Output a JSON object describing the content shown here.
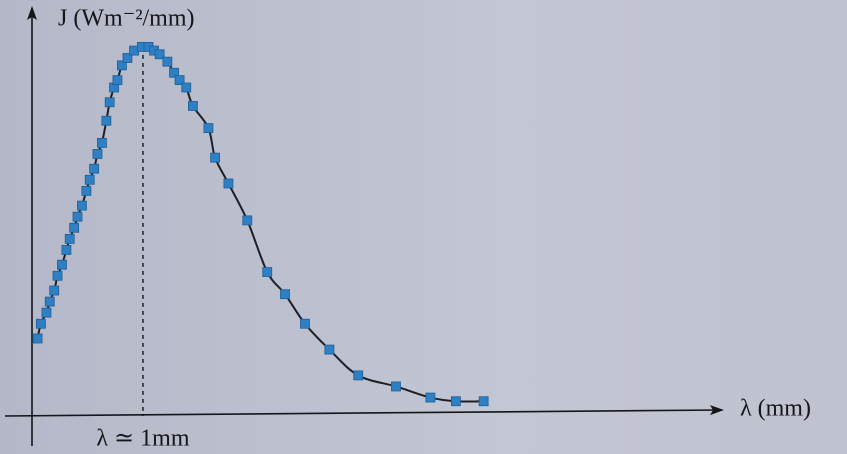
{
  "chart_data": {
    "type": "scatter",
    "y_label": "J (Wm⁻²/mm)",
    "x_label": "λ (mm)",
    "annotation": {
      "text": "λ ≃ 1mm",
      "x": 1
    },
    "x": [
      0.05,
      0.08,
      0.13,
      0.16,
      0.2,
      0.23,
      0.27,
      0.31,
      0.34,
      0.38,
      0.41,
      0.45,
      0.49,
      0.52,
      0.56,
      0.59,
      0.63,
      0.67,
      0.7,
      0.74,
      0.77,
      0.81,
      0.86,
      0.92,
      0.99,
      1.05,
      1.1,
      1.15,
      1.22,
      1.28,
      1.33,
      1.39,
      1.45,
      1.59,
      1.65,
      1.77,
      1.94,
      2.12,
      2.28,
      2.46,
      2.68,
      2.94,
      3.28,
      3.59,
      3.82,
      4.07
    ],
    "values": [
      0.21,
      0.25,
      0.28,
      0.31,
      0.34,
      0.38,
      0.41,
      0.45,
      0.48,
      0.51,
      0.54,
      0.57,
      0.61,
      0.64,
      0.67,
      0.71,
      0.74,
      0.8,
      0.85,
      0.89,
      0.91,
      0.95,
      0.97,
      0.99,
      1.0,
      1.0,
      0.99,
      0.98,
      0.96,
      0.93,
      0.91,
      0.89,
      0.84,
      0.78,
      0.7,
      0.63,
      0.53,
      0.39,
      0.33,
      0.25,
      0.18,
      0.11,
      0.08,
      0.05,
      0.04,
      0.04
    ],
    "color": "#2f7fc4",
    "line_color": "#1e1e24",
    "xlim": [
      0,
      6.2
    ],
    "ylim": [
      0,
      1.1
    ]
  }
}
